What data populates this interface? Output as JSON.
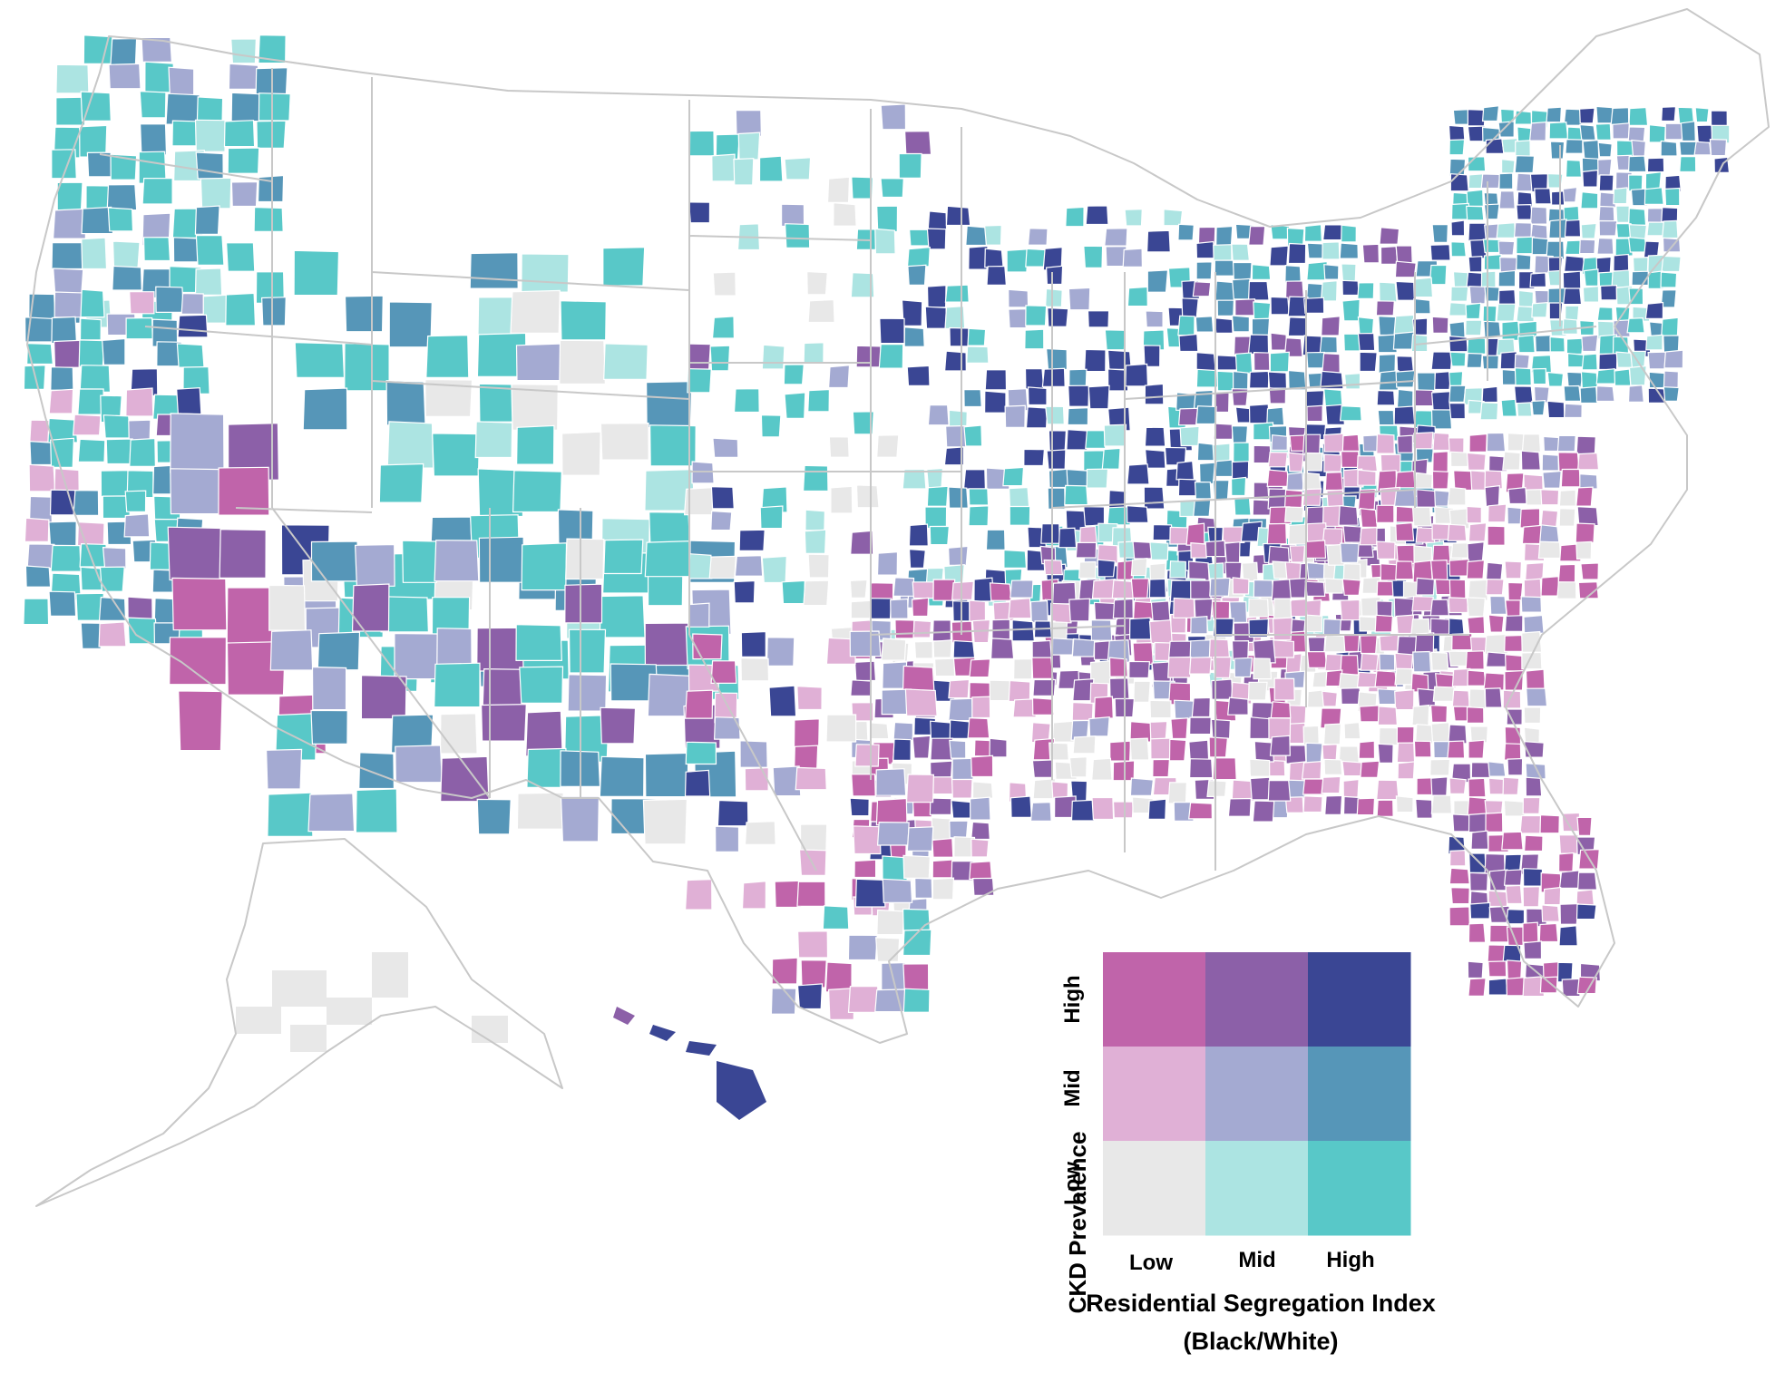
{
  "legend": {
    "y_title": "CKD Prevalence",
    "y_levels": [
      "Low",
      "Mid",
      "High"
    ],
    "x_levels": [
      "Low",
      "Mid",
      "High"
    ],
    "x_title_line1": "Residential Segregation Index",
    "x_title_line2": "(Black/White)",
    "palette": {
      "high_low": "#c064aa",
      "high_mid": "#8c60a8",
      "high_high": "#3a4694",
      "mid_low": "#e0b0d6",
      "mid_mid": "#a4aad2",
      "mid_high": "#5696b8",
      "low_low": "#e8e8e8",
      "low_mid": "#ace4e2",
      "low_high": "#58c8c8"
    }
  }
}
